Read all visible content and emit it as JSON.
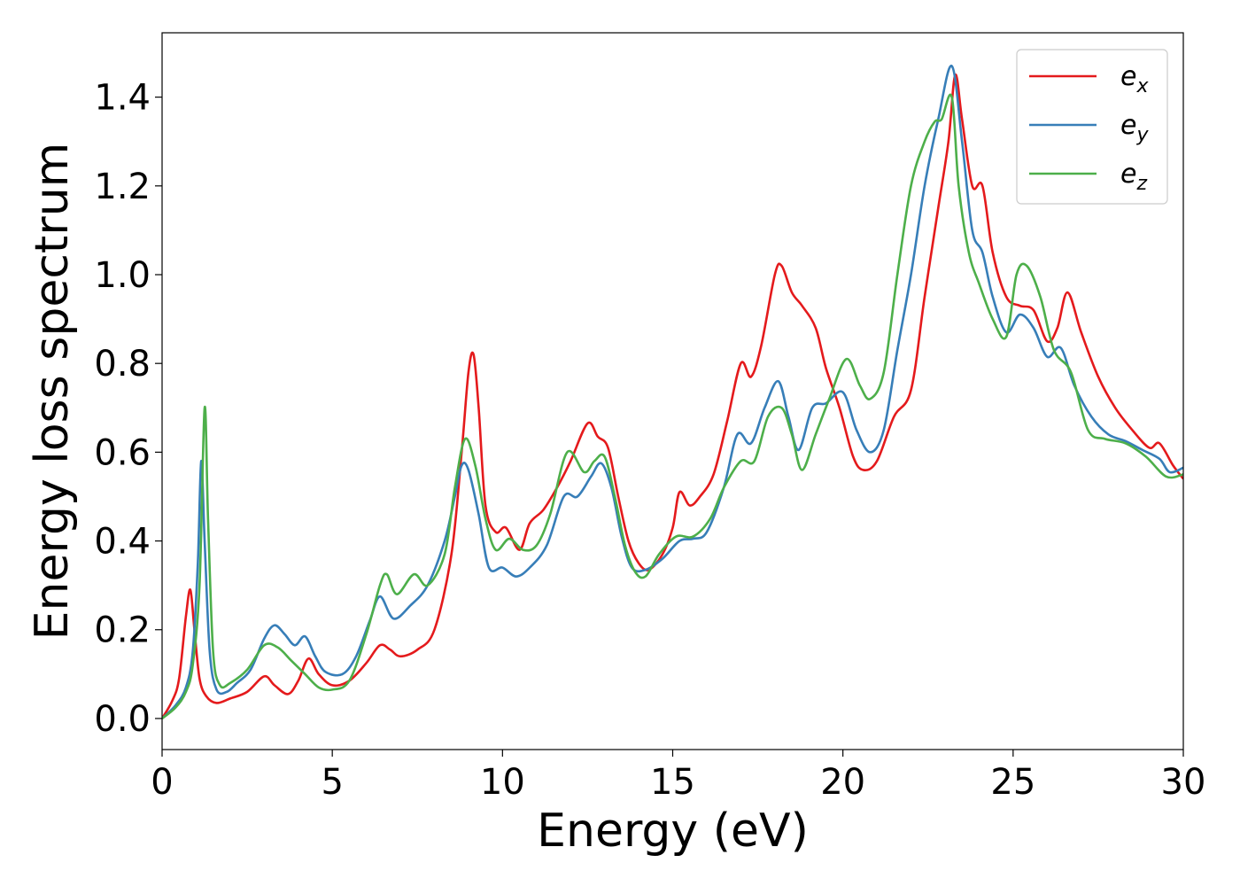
{
  "chart_data": {
    "type": "line",
    "title": "",
    "xlabel": "Energy (eV)",
    "ylabel": "Energy loss spectrum",
    "xlim": [
      0,
      30
    ],
    "ylim": [
      -0.07,
      1.545
    ],
    "xticks": [
      0,
      5,
      10,
      15,
      20,
      25,
      30
    ],
    "xtick_labels": [
      "0",
      "5",
      "10",
      "15",
      "20",
      "25",
      "30"
    ],
    "yticks": [
      0.0,
      0.2,
      0.4,
      0.6,
      0.8,
      1.0,
      1.2,
      1.4
    ],
    "ytick_labels": [
      "0.0",
      "0.2",
      "0.4",
      "0.6",
      "0.8",
      "1.0",
      "1.2",
      "1.4"
    ],
    "grid": false,
    "legend_position": "top-right",
    "series": [
      {
        "name": "e",
        "subscript": "x",
        "color": "#e41a1c",
        "points": [
          [
            0,
            0
          ],
          [
            0.3,
            0.04
          ],
          [
            0.5,
            0.09
          ],
          [
            0.7,
            0.23
          ],
          [
            0.83,
            0.29
          ],
          [
            0.95,
            0.2
          ],
          [
            1.1,
            0.09
          ],
          [
            1.3,
            0.05
          ],
          [
            1.6,
            0.035
          ],
          [
            2.0,
            0.045
          ],
          [
            2.5,
            0.06
          ],
          [
            3.0,
            0.095
          ],
          [
            3.3,
            0.075
          ],
          [
            3.7,
            0.055
          ],
          [
            4.0,
            0.085
          ],
          [
            4.3,
            0.135
          ],
          [
            4.6,
            0.1
          ],
          [
            5.0,
            0.075
          ],
          [
            5.5,
            0.085
          ],
          [
            6.0,
            0.125
          ],
          [
            6.4,
            0.165
          ],
          [
            6.7,
            0.155
          ],
          [
            7.0,
            0.14
          ],
          [
            7.5,
            0.155
          ],
          [
            8.0,
            0.2
          ],
          [
            8.5,
            0.37
          ],
          [
            8.8,
            0.6
          ],
          [
            9.0,
            0.78
          ],
          [
            9.15,
            0.82
          ],
          [
            9.3,
            0.7
          ],
          [
            9.5,
            0.48
          ],
          [
            9.8,
            0.42
          ],
          [
            10.1,
            0.43
          ],
          [
            10.5,
            0.38
          ],
          [
            10.8,
            0.44
          ],
          [
            11.2,
            0.47
          ],
          [
            11.6,
            0.52
          ],
          [
            12.0,
            0.58
          ],
          [
            12.5,
            0.665
          ],
          [
            12.8,
            0.635
          ],
          [
            13.1,
            0.61
          ],
          [
            13.4,
            0.5
          ],
          [
            13.7,
            0.4
          ],
          [
            14.0,
            0.35
          ],
          [
            14.3,
            0.335
          ],
          [
            14.7,
            0.37
          ],
          [
            15.0,
            0.43
          ],
          [
            15.2,
            0.51
          ],
          [
            15.5,
            0.48
          ],
          [
            15.8,
            0.5
          ],
          [
            16.2,
            0.55
          ],
          [
            16.6,
            0.67
          ],
          [
            17.0,
            0.8
          ],
          [
            17.3,
            0.77
          ],
          [
            17.6,
            0.84
          ],
          [
            18.0,
            1.0
          ],
          [
            18.2,
            1.02
          ],
          [
            18.5,
            0.96
          ],
          [
            18.8,
            0.93
          ],
          [
            19.2,
            0.88
          ],
          [
            19.5,
            0.79
          ],
          [
            19.9,
            0.7
          ],
          [
            20.3,
            0.59
          ],
          [
            20.6,
            0.56
          ],
          [
            21.0,
            0.58
          ],
          [
            21.5,
            0.68
          ],
          [
            22.0,
            0.74
          ],
          [
            22.4,
            0.95
          ],
          [
            22.8,
            1.15
          ],
          [
            23.1,
            1.3
          ],
          [
            23.3,
            1.45
          ],
          [
            23.5,
            1.35
          ],
          [
            23.8,
            1.2
          ],
          [
            24.1,
            1.2
          ],
          [
            24.4,
            1.05
          ],
          [
            24.8,
            0.95
          ],
          [
            25.2,
            0.93
          ],
          [
            25.6,
            0.92
          ],
          [
            26.0,
            0.85
          ],
          [
            26.3,
            0.88
          ],
          [
            26.6,
            0.96
          ],
          [
            27.0,
            0.87
          ],
          [
            27.5,
            0.77
          ],
          [
            28.0,
            0.7
          ],
          [
            28.5,
            0.65
          ],
          [
            29.0,
            0.61
          ],
          [
            29.3,
            0.62
          ],
          [
            29.7,
            0.57
          ],
          [
            30.0,
            0.54
          ]
        ]
      },
      {
        "name": "e",
        "subscript": "y",
        "color": "#377eb8",
        "points": [
          [
            0,
            0
          ],
          [
            0.4,
            0.03
          ],
          [
            0.7,
            0.07
          ],
          [
            0.9,
            0.15
          ],
          [
            1.05,
            0.35
          ],
          [
            1.15,
            0.58
          ],
          [
            1.25,
            0.4
          ],
          [
            1.4,
            0.15
          ],
          [
            1.6,
            0.065
          ],
          [
            1.9,
            0.06
          ],
          [
            2.2,
            0.08
          ],
          [
            2.6,
            0.11
          ],
          [
            3.0,
            0.18
          ],
          [
            3.3,
            0.21
          ],
          [
            3.6,
            0.19
          ],
          [
            3.9,
            0.165
          ],
          [
            4.2,
            0.185
          ],
          [
            4.5,
            0.14
          ],
          [
            4.8,
            0.105
          ],
          [
            5.3,
            0.1
          ],
          [
            5.7,
            0.14
          ],
          [
            6.1,
            0.22
          ],
          [
            6.4,
            0.275
          ],
          [
            6.8,
            0.225
          ],
          [
            7.3,
            0.255
          ],
          [
            7.8,
            0.3
          ],
          [
            8.3,
            0.4
          ],
          [
            8.6,
            0.5
          ],
          [
            8.8,
            0.57
          ],
          [
            9.0,
            0.56
          ],
          [
            9.3,
            0.46
          ],
          [
            9.6,
            0.34
          ],
          [
            10.0,
            0.34
          ],
          [
            10.4,
            0.32
          ],
          [
            10.8,
            0.34
          ],
          [
            11.3,
            0.39
          ],
          [
            11.8,
            0.5
          ],
          [
            12.2,
            0.5
          ],
          [
            12.6,
            0.545
          ],
          [
            12.9,
            0.575
          ],
          [
            13.2,
            0.52
          ],
          [
            13.5,
            0.41
          ],
          [
            13.8,
            0.34
          ],
          [
            14.2,
            0.335
          ],
          [
            14.7,
            0.36
          ],
          [
            15.2,
            0.4
          ],
          [
            15.6,
            0.405
          ],
          [
            16.0,
            0.42
          ],
          [
            16.5,
            0.52
          ],
          [
            16.9,
            0.64
          ],
          [
            17.3,
            0.62
          ],
          [
            17.7,
            0.7
          ],
          [
            18.1,
            0.76
          ],
          [
            18.4,
            0.68
          ],
          [
            18.7,
            0.605
          ],
          [
            19.1,
            0.7
          ],
          [
            19.5,
            0.71
          ],
          [
            20.0,
            0.735
          ],
          [
            20.4,
            0.65
          ],
          [
            20.8,
            0.6
          ],
          [
            21.2,
            0.65
          ],
          [
            21.6,
            0.83
          ],
          [
            22.0,
            1.0
          ],
          [
            22.4,
            1.2
          ],
          [
            22.8,
            1.35
          ],
          [
            23.2,
            1.47
          ],
          [
            23.5,
            1.3
          ],
          [
            23.8,
            1.1
          ],
          [
            24.1,
            1.05
          ],
          [
            24.4,
            0.95
          ],
          [
            24.8,
            0.87
          ],
          [
            25.2,
            0.91
          ],
          [
            25.6,
            0.88
          ],
          [
            26.0,
            0.815
          ],
          [
            26.4,
            0.835
          ],
          [
            26.8,
            0.75
          ],
          [
            27.3,
            0.68
          ],
          [
            27.8,
            0.64
          ],
          [
            28.3,
            0.625
          ],
          [
            28.8,
            0.605
          ],
          [
            29.3,
            0.585
          ],
          [
            29.6,
            0.555
          ],
          [
            30.0,
            0.565
          ]
        ]
      },
      {
        "name": "e",
        "subscript": "z",
        "color": "#4daf4a",
        "points": [
          [
            0,
            0
          ],
          [
            0.4,
            0.025
          ],
          [
            0.7,
            0.06
          ],
          [
            0.9,
            0.12
          ],
          [
            1.1,
            0.3
          ],
          [
            1.25,
            0.7
          ],
          [
            1.35,
            0.45
          ],
          [
            1.5,
            0.15
          ],
          [
            1.7,
            0.075
          ],
          [
            2.0,
            0.08
          ],
          [
            2.5,
            0.11
          ],
          [
            3.0,
            0.165
          ],
          [
            3.4,
            0.16
          ],
          [
            3.8,
            0.13
          ],
          [
            4.2,
            0.1
          ],
          [
            4.6,
            0.07
          ],
          [
            5.0,
            0.065
          ],
          [
            5.5,
            0.085
          ],
          [
            6.0,
            0.19
          ],
          [
            6.4,
            0.3
          ],
          [
            6.6,
            0.325
          ],
          [
            6.9,
            0.28
          ],
          [
            7.4,
            0.325
          ],
          [
            7.8,
            0.3
          ],
          [
            8.3,
            0.37
          ],
          [
            8.6,
            0.52
          ],
          [
            8.9,
            0.63
          ],
          [
            9.2,
            0.57
          ],
          [
            9.5,
            0.45
          ],
          [
            9.8,
            0.38
          ],
          [
            10.2,
            0.405
          ],
          [
            10.6,
            0.38
          ],
          [
            11.0,
            0.39
          ],
          [
            11.4,
            0.46
          ],
          [
            11.9,
            0.6
          ],
          [
            12.4,
            0.555
          ],
          [
            12.7,
            0.58
          ],
          [
            13.0,
            0.59
          ],
          [
            13.3,
            0.5
          ],
          [
            13.6,
            0.39
          ],
          [
            13.9,
            0.33
          ],
          [
            14.2,
            0.32
          ],
          [
            14.6,
            0.37
          ],
          [
            15.1,
            0.41
          ],
          [
            15.6,
            0.41
          ],
          [
            16.1,
            0.45
          ],
          [
            16.5,
            0.52
          ],
          [
            17.0,
            0.58
          ],
          [
            17.4,
            0.58
          ],
          [
            17.8,
            0.68
          ],
          [
            18.2,
            0.7
          ],
          [
            18.5,
            0.64
          ],
          [
            18.8,
            0.56
          ],
          [
            19.2,
            0.64
          ],
          [
            19.6,
            0.72
          ],
          [
            20.1,
            0.81
          ],
          [
            20.5,
            0.75
          ],
          [
            20.8,
            0.72
          ],
          [
            21.2,
            0.78
          ],
          [
            21.6,
            1.0
          ],
          [
            22.0,
            1.2
          ],
          [
            22.4,
            1.3
          ],
          [
            22.7,
            1.345
          ],
          [
            22.9,
            1.35
          ],
          [
            23.2,
            1.4
          ],
          [
            23.4,
            1.2
          ],
          [
            23.7,
            1.05
          ],
          [
            24.0,
            0.98
          ],
          [
            24.4,
            0.9
          ],
          [
            24.8,
            0.86
          ],
          [
            25.1,
            1.0
          ],
          [
            25.4,
            1.02
          ],
          [
            25.8,
            0.95
          ],
          [
            26.2,
            0.83
          ],
          [
            26.7,
            0.78
          ],
          [
            27.2,
            0.65
          ],
          [
            27.7,
            0.63
          ],
          [
            28.3,
            0.62
          ],
          [
            28.9,
            0.59
          ],
          [
            29.5,
            0.545
          ],
          [
            30.0,
            0.55
          ]
        ]
      }
    ]
  }
}
